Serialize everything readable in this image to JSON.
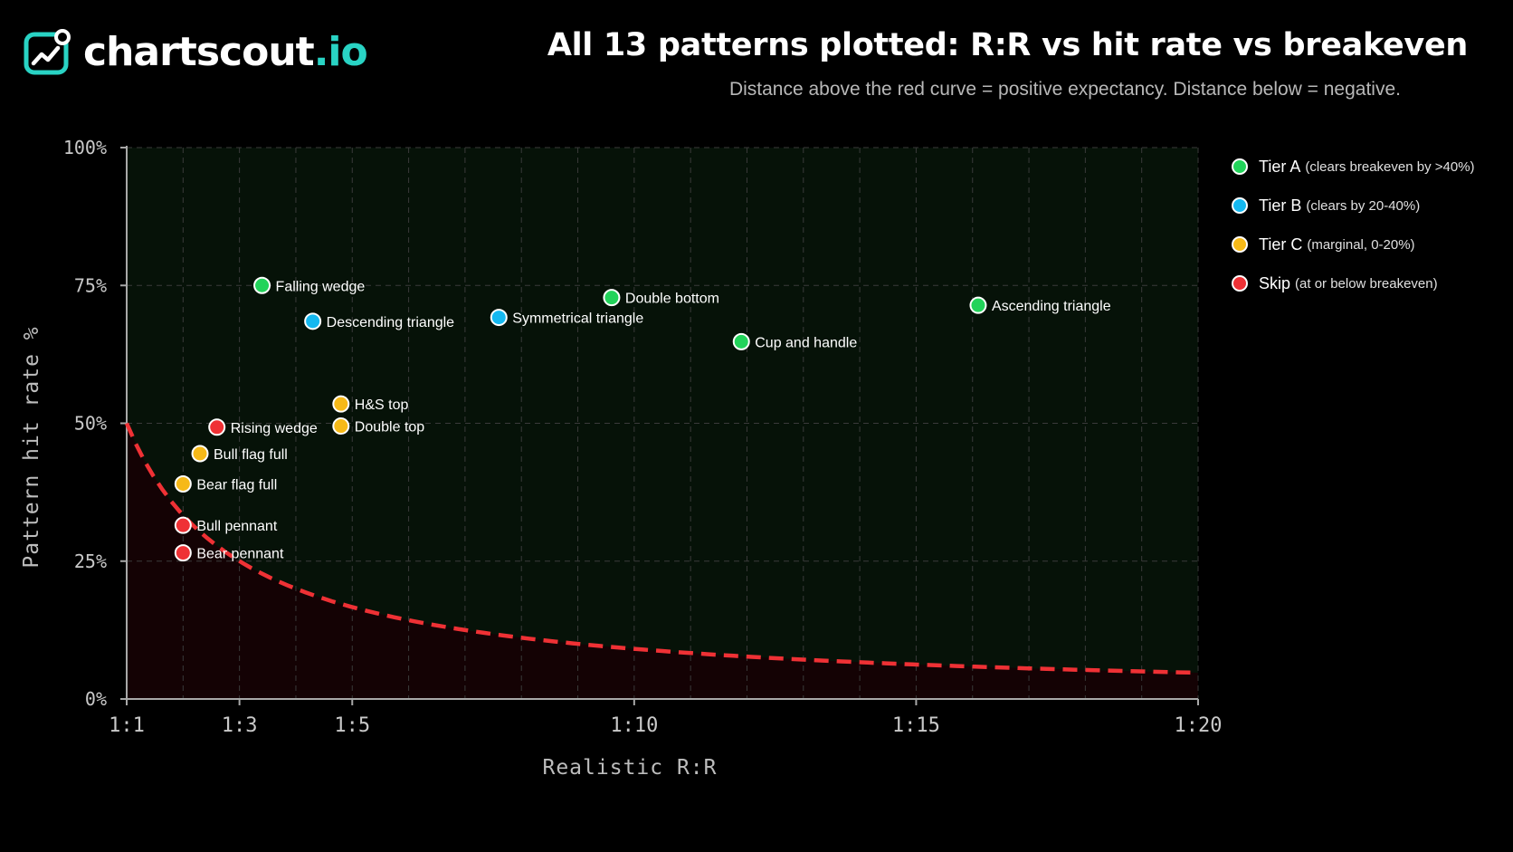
{
  "brand": {
    "name": "chartscout",
    "tld": ".io"
  },
  "colors": {
    "tier_a": "#22d35a",
    "tier_b": "#15b8f0",
    "tier_c": "#f6b918",
    "skip": "#ef3135",
    "breakeven": "#ef3135",
    "brand_accent": "#29d3c4"
  },
  "legend": [
    {
      "tier": "A",
      "name": "Tier A",
      "note": "(clears breakeven by >40%)",
      "color": "#22d35a"
    },
    {
      "tier": "B",
      "name": "Tier B",
      "note": "(clears by 20-40%)",
      "color": "#15b8f0"
    },
    {
      "tier": "C",
      "name": "Tier C",
      "note": "(marginal, 0-20%)",
      "color": "#f6b918"
    },
    {
      "tier": "S",
      "name": "Skip",
      "note": "(at or below breakeven)",
      "color": "#ef3135"
    }
  ],
  "chart_data": {
    "type": "scatter",
    "title": "All 13 patterns plotted: R:R vs hit rate vs breakeven",
    "subtitle": "Distance above the red curve = positive expectancy. Distance below = negative.",
    "xlabel": "Realistic R:R",
    "ylabel": "Pattern hit rate %",
    "xlim": [
      1,
      20
    ],
    "ylim": [
      0,
      100
    ],
    "x_ticks": [
      1,
      3,
      5,
      10,
      15,
      20
    ],
    "x_tick_labels": [
      "1:1",
      "1:3",
      "1:5",
      "1:10",
      "1:15",
      "1:20"
    ],
    "y_ticks": [
      0,
      25,
      50,
      75,
      100
    ],
    "y_tick_labels": [
      "0%",
      "25%",
      "50%",
      "75%",
      "100%"
    ],
    "grid": true,
    "legend_position": "right",
    "breakeven_curve": "hit rate = 1 / (1 + R)",
    "points": [
      {
        "label": "Falling wedge",
        "x": 3.4,
        "y": 75,
        "tier": "A"
      },
      {
        "label": "Descending triangle",
        "x": 4.3,
        "y": 68.5,
        "tier": "B"
      },
      {
        "label": "Symmetrical triangle",
        "x": 7.6,
        "y": 69.2,
        "tier": "B"
      },
      {
        "label": "Double bottom",
        "x": 9.6,
        "y": 72.8,
        "tier": "A"
      },
      {
        "label": "Cup and handle",
        "x": 11.9,
        "y": 64.8,
        "tier": "A"
      },
      {
        "label": "Ascending triangle",
        "x": 16.1,
        "y": 71.4,
        "tier": "A"
      },
      {
        "label": "H&S top",
        "x": 4.8,
        "y": 53.5,
        "tier": "C"
      },
      {
        "label": "Double top",
        "x": 4.8,
        "y": 49.5,
        "tier": "C"
      },
      {
        "label": "Rising wedge",
        "x": 2.6,
        "y": 49.3,
        "tier": "S"
      },
      {
        "label": "Bull flag full",
        "x": 2.3,
        "y": 44.5,
        "tier": "C"
      },
      {
        "label": "Bear flag full",
        "x": 2.0,
        "y": 39.0,
        "tier": "C"
      },
      {
        "label": "Bull pennant",
        "x": 2.0,
        "y": 31.5,
        "tier": "S"
      },
      {
        "label": "Bear pennant",
        "x": 2.0,
        "y": 26.5,
        "tier": "S"
      }
    ]
  }
}
